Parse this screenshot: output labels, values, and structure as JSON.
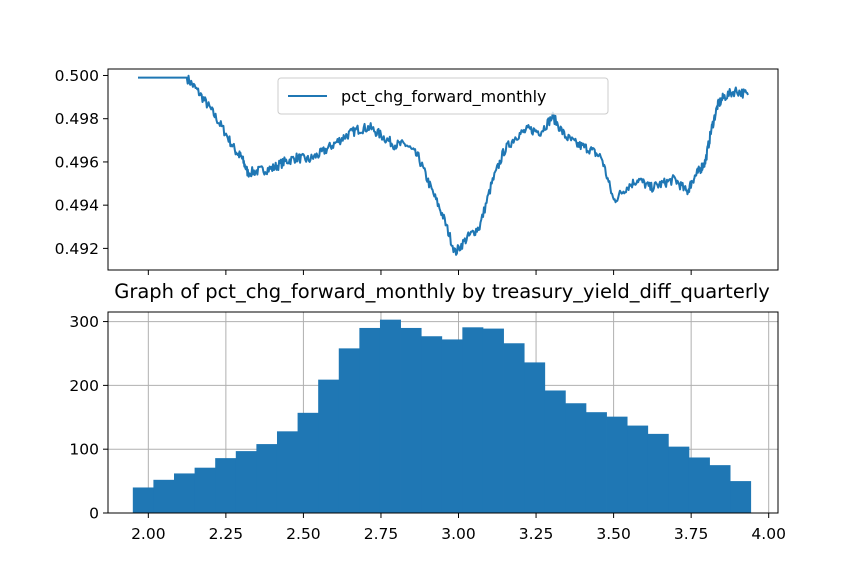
{
  "chart_data": [
    {
      "type": "line",
      "title": "",
      "xlabel": "",
      "ylabel": "",
      "ylim": [
        0.491,
        0.5003
      ],
      "y_ticks": [
        "0.500",
        "0.498",
        "0.496",
        "0.494",
        "0.492"
      ],
      "y_tick_values": [
        0.5,
        0.498,
        0.496,
        0.494,
        0.492
      ],
      "x_ticks_labeled": false,
      "grid": false,
      "legend": {
        "placement": "top-center",
        "entries": [
          "pct_chg_forward_monthly"
        ]
      },
      "series": [
        {
          "name": "pct_chg_forward_monthly",
          "color": "#1f77b4",
          "x": [
            0.0,
            0.03,
            0.05,
            0.07,
            0.08,
            0.1,
            0.12,
            0.14,
            0.16,
            0.17,
            0.18,
            0.2,
            0.22,
            0.24,
            0.26,
            0.28,
            0.3,
            0.32,
            0.34,
            0.36,
            0.38,
            0.4,
            0.42,
            0.44,
            0.46,
            0.48,
            0.5,
            0.52,
            0.54,
            0.56,
            0.58,
            0.6,
            0.62,
            0.64,
            0.66,
            0.68,
            0.7,
            0.72,
            0.74,
            0.76,
            0.78,
            0.8,
            0.82,
            0.84,
            0.86,
            0.88,
            0.9,
            0.91,
            0.92,
            0.93,
            0.94,
            0.95,
            0.96,
            0.98,
            1.0
          ],
          "values": [
            0.4999,
            0.4999,
            0.4999,
            0.4999,
            0.4999,
            0.4992,
            0.4984,
            0.4975,
            0.4965,
            0.4962,
            0.4955,
            0.4956,
            0.4957,
            0.496,
            0.4962,
            0.4961,
            0.4964,
            0.4968,
            0.4972,
            0.4975,
            0.4976,
            0.4972,
            0.4968,
            0.4968,
            0.4962,
            0.4948,
            0.4935,
            0.4918,
            0.4925,
            0.493,
            0.495,
            0.4965,
            0.4972,
            0.4975,
            0.4974,
            0.4981,
            0.4972,
            0.4968,
            0.4966,
            0.4962,
            0.4942,
            0.4948,
            0.4952,
            0.4948,
            0.495,
            0.4952,
            0.4946,
            0.4952,
            0.4956,
            0.496,
            0.4975,
            0.4986,
            0.499,
            0.4993,
            0.4991
          ]
        }
      ]
    },
    {
      "type": "bar",
      "title": "Graph of pct_chg_forward_monthly by treasury_yield_diff_quarterly",
      "xlabel": "",
      "ylabel": "",
      "xlim": [
        1.87,
        4.03
      ],
      "ylim": [
        0,
        315
      ],
      "bin_start": 1.95,
      "bin_width": 0.0664,
      "values": [
        40,
        52,
        62,
        71,
        86,
        97,
        108,
        128,
        157,
        209,
        258,
        290,
        303,
        290,
        277,
        272,
        291,
        289,
        266,
        236,
        192,
        172,
        158,
        151,
        137,
        124,
        104,
        87,
        75,
        50
      ],
      "x_ticks": [
        "2.00",
        "2.25",
        "2.50",
        "2.75",
        "3.00",
        "3.25",
        "3.50",
        "3.75",
        "4.00"
      ],
      "x_tick_values": [
        2.0,
        2.25,
        2.5,
        2.75,
        3.0,
        3.25,
        3.5,
        3.75,
        4.0
      ],
      "y_ticks": [
        "0",
        "100",
        "200",
        "300"
      ],
      "y_tick_values": [
        0,
        100,
        200,
        300
      ],
      "grid": true,
      "color": "#1f77b4"
    }
  ]
}
